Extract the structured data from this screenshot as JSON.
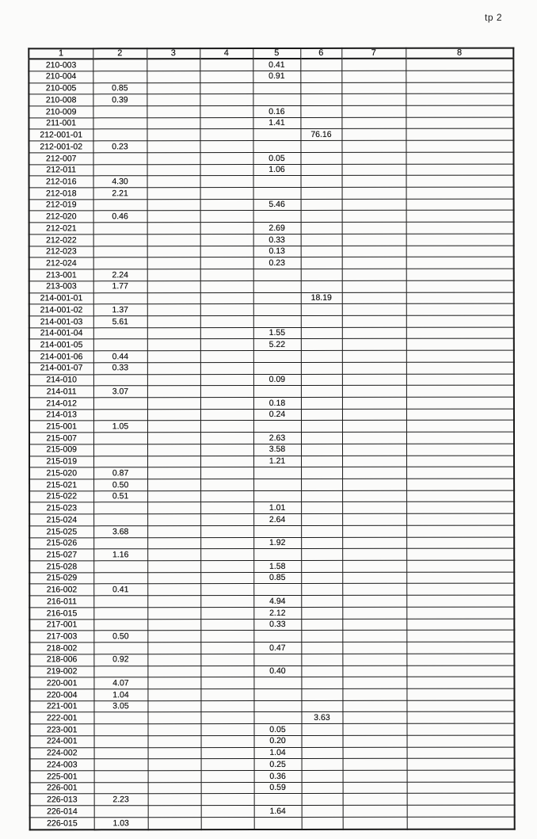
{
  "page_label": "tp 2",
  "colors": {
    "paper": "#fbfbfa",
    "ink": "#161616",
    "grid": "#191919"
  },
  "table": {
    "columns": [
      "1",
      "2",
      "3",
      "4",
      "5",
      "6",
      "7",
      "8"
    ],
    "rows": [
      [
        "210-003",
        "",
        "",
        "",
        "0.41",
        "",
        "",
        ""
      ],
      [
        "210-004",
        "",
        "",
        "",
        "0.91",
        "",
        "",
        ""
      ],
      [
        "210-005",
        "0.85",
        "",
        "",
        "",
        "",
        "",
        ""
      ],
      [
        "210-008",
        "0.39",
        "",
        "",
        "",
        "",
        "",
        ""
      ],
      [
        "210-009",
        "",
        "",
        "",
        "0.16",
        "",
        "",
        ""
      ],
      [
        "211-001",
        "",
        "",
        "",
        "1.41",
        "",
        "",
        ""
      ],
      [
        "212-001-01",
        "",
        "",
        "",
        "",
        "76.16",
        "",
        ""
      ],
      [
        "212-001-02",
        "0.23",
        "",
        "",
        "",
        "",
        "",
        ""
      ],
      [
        "212-007",
        "",
        "",
        "",
        "0.05",
        "",
        "",
        ""
      ],
      [
        "212-011",
        "",
        "",
        "",
        "1.06",
        "",
        "",
        ""
      ],
      [
        "212-016",
        "4.30",
        "",
        "",
        "",
        "",
        "",
        ""
      ],
      [
        "212-018",
        "2.21",
        "",
        "",
        "",
        "",
        "",
        ""
      ],
      [
        "212-019",
        "",
        "",
        "",
        "5.46",
        "",
        "",
        ""
      ],
      [
        "212-020",
        "0.46",
        "",
        "",
        "",
        "",
        "",
        ""
      ],
      [
        "212-021",
        "",
        "",
        "",
        "2.69",
        "",
        "",
        ""
      ],
      [
        "212-022",
        "",
        "",
        "",
        "0.33",
        "",
        "",
        ""
      ],
      [
        "212-023",
        "",
        "",
        "",
        "0.13",
        "",
        "",
        ""
      ],
      [
        "212-024",
        "",
        "",
        "",
        "0.23",
        "",
        "",
        ""
      ],
      [
        "213-001",
        "2.24",
        "",
        "",
        "",
        "",
        "",
        ""
      ],
      [
        "213-003",
        "1.77",
        "",
        "",
        "",
        "",
        "",
        ""
      ],
      [
        "214-001-01",
        "",
        "",
        "",
        "",
        "18.19",
        "",
        ""
      ],
      [
        "214-001-02",
        "1.37",
        "",
        "",
        "",
        "",
        "",
        ""
      ],
      [
        "214-001-03",
        "5.61",
        "",
        "",
        "",
        "",
        "",
        ""
      ],
      [
        "214-001-04",
        "",
        "",
        "",
        "1.55",
        "",
        "",
        ""
      ],
      [
        "214-001-05",
        "",
        "",
        "",
        "5.22",
        "",
        "",
        ""
      ],
      [
        "214-001-06",
        "0.44",
        "",
        "",
        "",
        "",
        "",
        ""
      ],
      [
        "214-001-07",
        "0.33",
        "",
        "",
        "",
        "",
        "",
        ""
      ],
      [
        "214-010",
        "",
        "",
        "",
        "0.09",
        "",
        "",
        ""
      ],
      [
        "214-011",
        "3.07",
        "",
        "",
        "",
        "",
        "",
        ""
      ],
      [
        "214-012",
        "",
        "",
        "",
        "0.18",
        "",
        "",
        ""
      ],
      [
        "214-013",
        "",
        "",
        "",
        "0.24",
        "",
        "",
        ""
      ],
      [
        "215-001",
        "1.05",
        "",
        "",
        "",
        "",
        "",
        ""
      ],
      [
        "215-007",
        "",
        "",
        "",
        "2.63",
        "",
        "",
        ""
      ],
      [
        "215-009",
        "",
        "",
        "",
        "3.58",
        "",
        "",
        ""
      ],
      [
        "215-019",
        "",
        "",
        "",
        "1.21",
        "",
        "",
        ""
      ],
      [
        "215-020",
        "0.87",
        "",
        "",
        "",
        "",
        "",
        ""
      ],
      [
        "215-021",
        "0.50",
        "",
        "",
        "",
        "",
        "",
        ""
      ],
      [
        "215-022",
        "0.51",
        "",
        "",
        "",
        "",
        "",
        ""
      ],
      [
        "215-023",
        "",
        "",
        "",
        "1.01",
        "",
        "",
        ""
      ],
      [
        "215-024",
        "",
        "",
        "",
        "2.64",
        "",
        "",
        ""
      ],
      [
        "215-025",
        "3.68",
        "",
        "",
        "",
        "",
        "",
        ""
      ],
      [
        "215-026",
        "",
        "",
        "",
        "1.92",
        "",
        "",
        ""
      ],
      [
        "215-027",
        "1.16",
        "",
        "",
        "",
        "",
        "",
        ""
      ],
      [
        "215-028",
        "",
        "",
        "",
        "1.58",
        "",
        "",
        ""
      ],
      [
        "215-029",
        "",
        "",
        "",
        "0.85",
        "",
        "",
        ""
      ],
      [
        "216-002",
        "0.41",
        "",
        "",
        "",
        "",
        "",
        ""
      ],
      [
        "216-011",
        "",
        "",
        "",
        "4.94",
        "",
        "",
        ""
      ],
      [
        "216-015",
        "",
        "",
        "",
        "2.12",
        "",
        "",
        ""
      ],
      [
        "217-001",
        "",
        "",
        "",
        "0.33",
        "",
        "",
        ""
      ],
      [
        "217-003",
        "0.50",
        "",
        "",
        "",
        "",
        "",
        ""
      ],
      [
        "218-002",
        "",
        "",
        "",
        "0.47",
        "",
        "",
        ""
      ],
      [
        "218-006",
        "0.92",
        "",
        "",
        "",
        "",
        "",
        ""
      ],
      [
        "219-002",
        "",
        "",
        "",
        "0.40",
        "",
        "",
        ""
      ],
      [
        "220-001",
        "4.07",
        "",
        "",
        "",
        "",
        "",
        ""
      ],
      [
        "220-004",
        "1.04",
        "",
        "",
        "",
        "",
        "",
        ""
      ],
      [
        "221-001",
        "3.05",
        "",
        "",
        "",
        "",
        "",
        ""
      ],
      [
        "222-001",
        "",
        "",
        "",
        "",
        "3.63",
        "",
        ""
      ],
      [
        "223-001",
        "",
        "",
        "",
        "0.05",
        "",
        "",
        ""
      ],
      [
        "224-001",
        "",
        "",
        "",
        "0.20",
        "",
        "",
        ""
      ],
      [
        "224-002",
        "",
        "",
        "",
        "1.04",
        "",
        "",
        ""
      ],
      [
        "224-003",
        "",
        "",
        "",
        "0.25",
        "",
        "",
        ""
      ],
      [
        "225-001",
        "",
        "",
        "",
        "0.36",
        "",
        "",
        ""
      ],
      [
        "226-001",
        "",
        "",
        "",
        "0.59",
        "",
        "",
        ""
      ],
      [
        "226-013",
        "2.23",
        "",
        "",
        "",
        "",
        "",
        ""
      ],
      [
        "226-014",
        "",
        "",
        "",
        "1.64",
        "",
        "",
        ""
      ],
      [
        "226-015",
        "1.03",
        "",
        "",
        "",
        "",
        "",
        ""
      ]
    ]
  }
}
